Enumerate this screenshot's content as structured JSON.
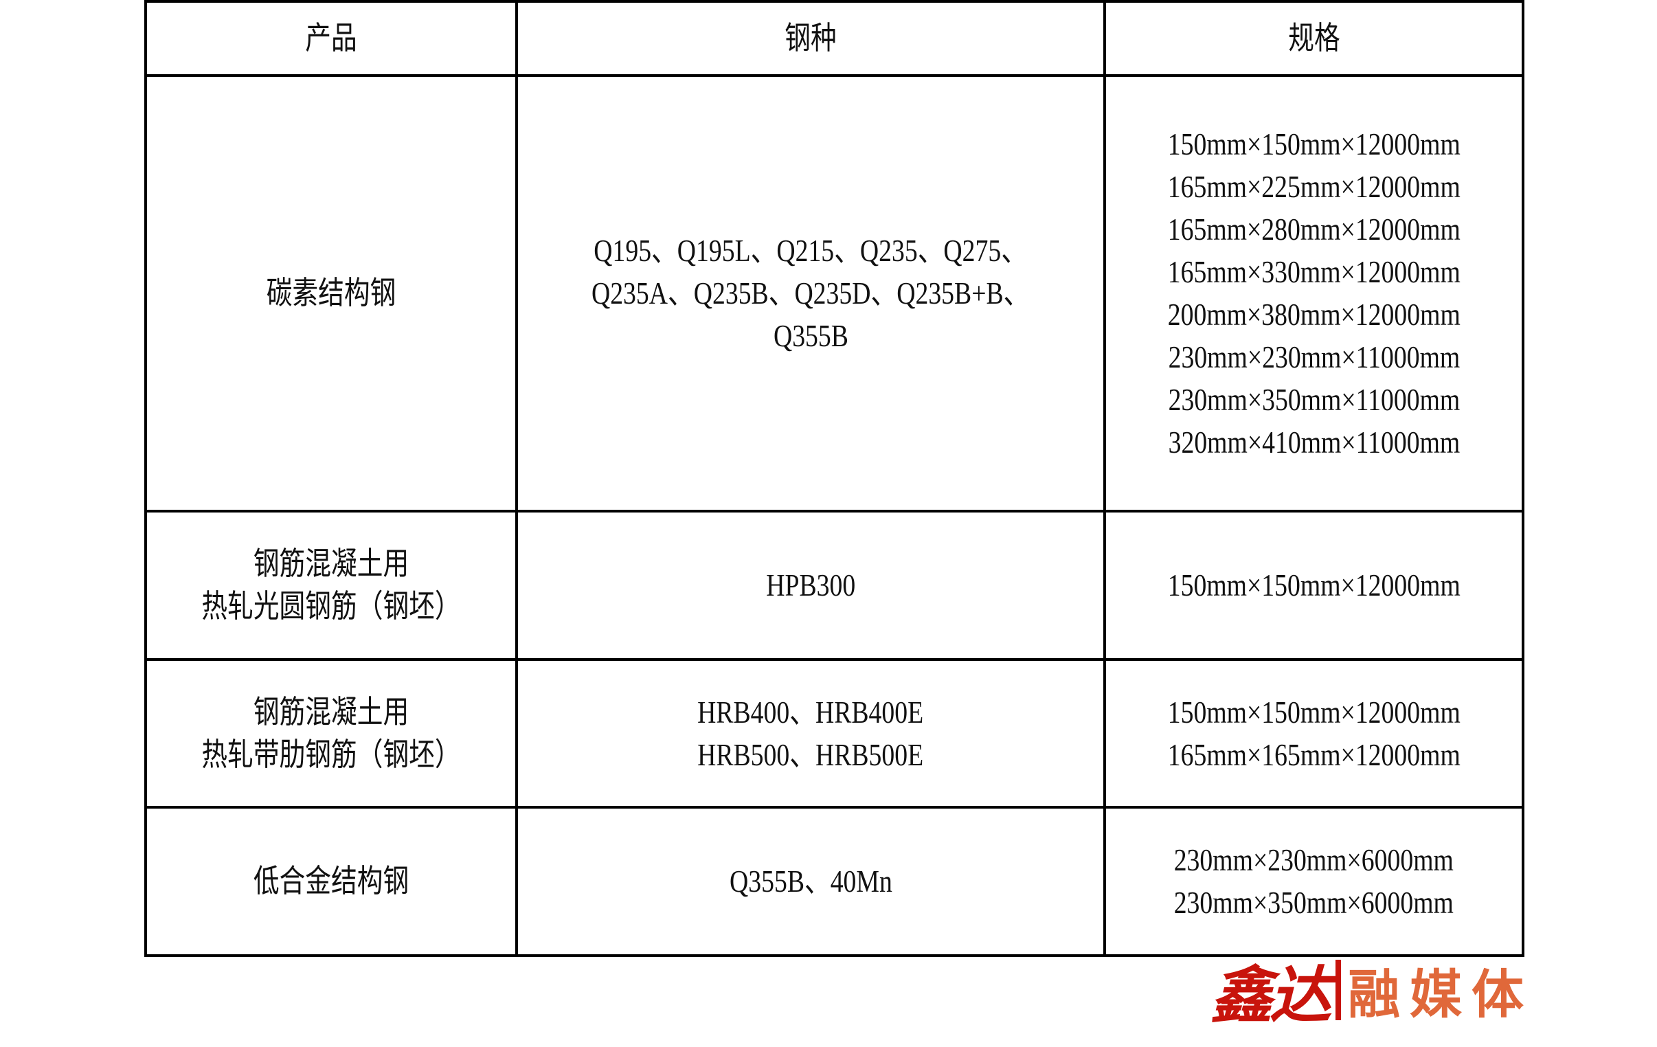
{
  "table": {
    "headers": [
      "产品",
      "钢种",
      "规格"
    ],
    "rows": [
      {
        "product": [
          "碳素结构钢"
        ],
        "grades": [
          "Q195、Q195L、Q215、Q235、Q275、",
          "Q235A、Q235B、Q235D、Q235B+B、",
          "Q355B"
        ],
        "specs": [
          "150mm×150mm×12000mm",
          "165mm×225mm×12000mm",
          "165mm×280mm×12000mm",
          "165mm×330mm×12000mm",
          "200mm×380mm×12000mm",
          "230mm×230mm×11000mm",
          "230mm×350mm×11000mm",
          "320mm×410mm×11000mm"
        ]
      },
      {
        "product": [
          "钢筋混凝土用",
          "热轧光圆钢筋（钢坯）"
        ],
        "grades": [
          "HPB300"
        ],
        "specs": [
          "150mm×150mm×12000mm"
        ]
      },
      {
        "product": [
          "钢筋混凝土用",
          "热轧带肋钢筋（钢坯）"
        ],
        "grades": [
          "HRB400、HRB400E",
          "HRB500、HRB500E"
        ],
        "specs": [
          "150mm×150mm×12000mm",
          "165mm×165mm×12000mm"
        ]
      },
      {
        "product": [
          "低合金结构钢"
        ],
        "grades": [
          "Q355B、40Mn"
        ],
        "specs": [
          "230mm×230mm×6000mm",
          "230mm×350mm×6000mm"
        ]
      }
    ]
  },
  "logo": {
    "left_text": "鑫达",
    "right_text": "融媒体",
    "left_color": "#c8140c",
    "right_color": "#e0683a"
  }
}
